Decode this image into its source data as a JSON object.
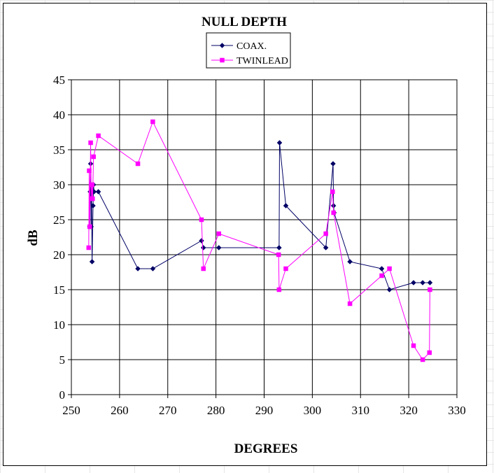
{
  "chart_data": {
    "type": "line",
    "title": "NULL DEPTH",
    "xlabel": "DEGREES",
    "ylabel": "dB",
    "xlim": [
      250,
      330
    ],
    "ylim": [
      0,
      45
    ],
    "x_ticks": [
      250,
      260,
      270,
      280,
      290,
      300,
      310,
      320,
      330
    ],
    "y_ticks": [
      0,
      5,
      10,
      15,
      20,
      25,
      30,
      35,
      40,
      45
    ],
    "grid": true,
    "legend_position": "top-center",
    "series": [
      {
        "name": "COAX.",
        "color": "#000066",
        "marker": "diamond",
        "points": [
          [
            253.8,
            24
          ],
          [
            253.9,
            29
          ],
          [
            254.0,
            33
          ],
          [
            254.1,
            24
          ],
          [
            254.2,
            29
          ],
          [
            254.3,
            19
          ],
          [
            254.5,
            27
          ],
          [
            254.6,
            30
          ],
          [
            254.7,
            29
          ],
          [
            255.6,
            29
          ],
          [
            263.8,
            18
          ],
          [
            266.9,
            18
          ],
          [
            277.0,
            22
          ],
          [
            277.4,
            21
          ],
          [
            280.6,
            21
          ],
          [
            293.1,
            21
          ],
          [
            293.2,
            36
          ],
          [
            294.5,
            27
          ],
          [
            302.8,
            21
          ],
          [
            304.3,
            33
          ],
          [
            304.4,
            27
          ],
          [
            304.5,
            26
          ],
          [
            307.8,
            19
          ],
          [
            314.4,
            18
          ],
          [
            316.0,
            15
          ],
          [
            321.0,
            16
          ],
          [
            322.9,
            16
          ],
          [
            324.4,
            16
          ]
        ]
      },
      {
        "name": "TWINLEAD",
        "color": "#FF00FF",
        "marker": "square",
        "points": [
          [
            253.6,
            21
          ],
          [
            253.7,
            32
          ],
          [
            253.8,
            24
          ],
          [
            254.0,
            36
          ],
          [
            254.1,
            30
          ],
          [
            254.2,
            28
          ],
          [
            254.3,
            30
          ],
          [
            254.4,
            28
          ],
          [
            254.6,
            34
          ],
          [
            255.6,
            37
          ],
          [
            263.8,
            33
          ],
          [
            266.9,
            39
          ],
          [
            277.0,
            25
          ],
          [
            277.4,
            18
          ],
          [
            280.6,
            23
          ],
          [
            293.0,
            20
          ],
          [
            293.1,
            15
          ],
          [
            294.5,
            18
          ],
          [
            302.8,
            23
          ],
          [
            304.2,
            29
          ],
          [
            304.4,
            26
          ],
          [
            307.8,
            13
          ],
          [
            314.4,
            17
          ],
          [
            316.0,
            18
          ],
          [
            321.0,
            7
          ],
          [
            322.9,
            5
          ],
          [
            324.3,
            6
          ],
          [
            324.4,
            15
          ]
        ]
      }
    ]
  }
}
